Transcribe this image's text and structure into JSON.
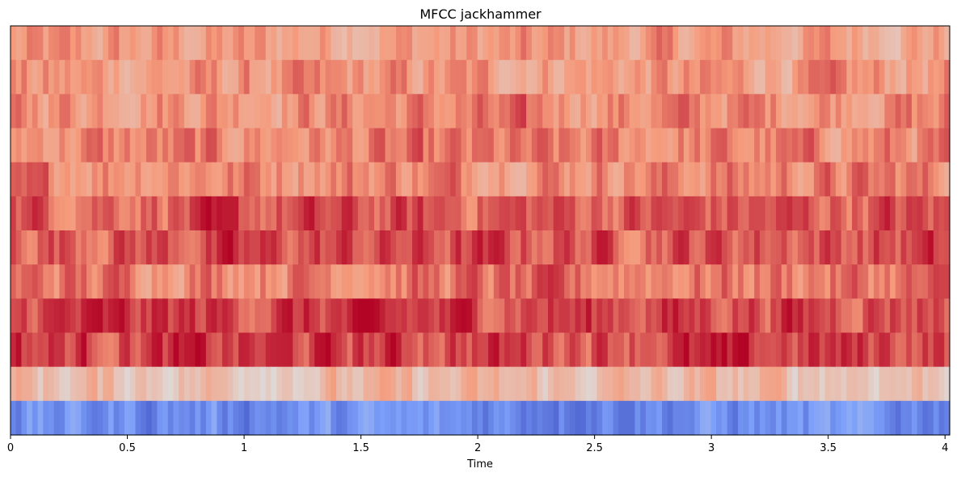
{
  "chart_data": {
    "type": "heatmap",
    "title": "MFCC jackhammer",
    "xlabel": "Time",
    "ylabel": "",
    "xlim": [
      0,
      4.02
    ],
    "x_ticks": [
      0,
      0.5,
      1,
      1.5,
      2,
      2.5,
      3,
      3.5,
      4
    ],
    "x_tick_labels": [
      "0",
      "0.5",
      "1",
      "1.5",
      "2",
      "2.5",
      "3",
      "3.5",
      "4"
    ],
    "n_coefficients": 11,
    "frame_duration": 0.02322,
    "colormap": "coolwarm",
    "vmin": -1,
    "vmax": 1,
    "grid": false,
    "coefficient_rows": [
      {
        "coefficient": 10,
        "base": 0.45
      },
      {
        "coefficient": 9,
        "base": 0.47
      },
      {
        "coefficient": 8,
        "base": 0.55
      },
      {
        "coefficient": 7,
        "base": 0.55
      },
      {
        "coefficient": 6,
        "base": 0.58
      },
      {
        "coefficient": 5,
        "base": 0.72
      },
      {
        "coefficient": 4,
        "base": 0.75
      },
      {
        "coefficient": 3,
        "base": 0.62
      },
      {
        "coefficient": 2,
        "base": 0.8
      },
      {
        "coefficient": 1,
        "base": 0.8
      },
      {
        "coefficient": 0,
        "base": 0.25
      }
    ],
    "bottom_row": {
      "coefficient": "low",
      "base": -0.6
    }
  }
}
